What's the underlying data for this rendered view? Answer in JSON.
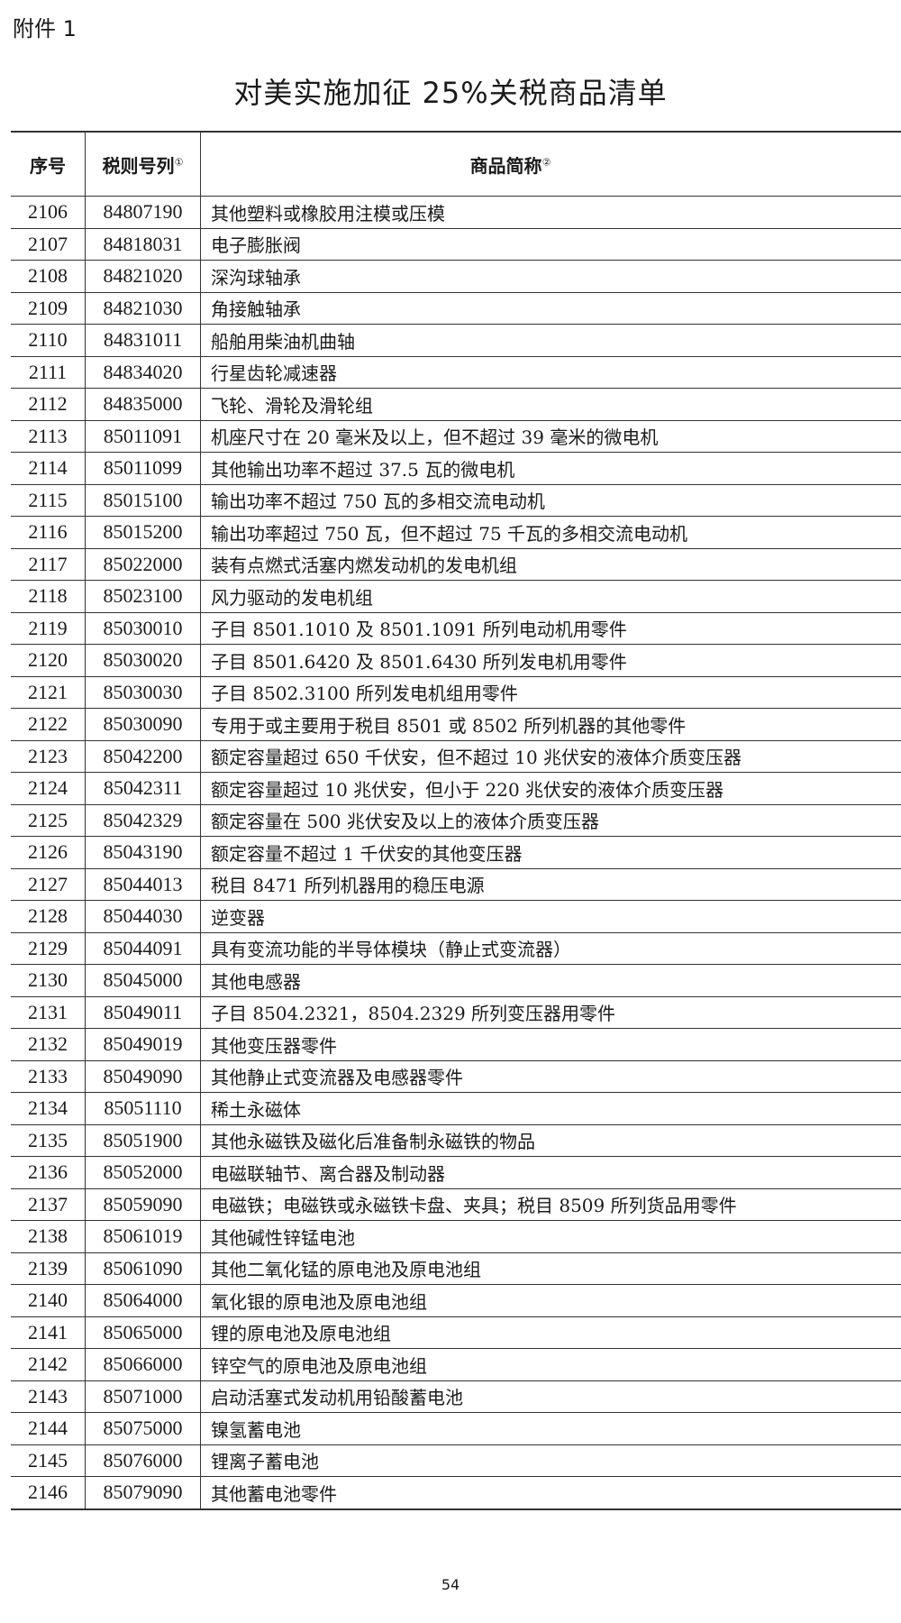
{
  "attachment_label": "附件 1",
  "title": "对美实施加征 25%关税商品清单",
  "table": {
    "headers": [
      {
        "label": "序号",
        "note": ""
      },
      {
        "label": "税则号列",
        "note": "①"
      },
      {
        "label": "商品简称",
        "note": "②"
      }
    ],
    "rows": [
      [
        "2106",
        "84807190",
        "其他塑料或橡胶用注模或压模"
      ],
      [
        "2107",
        "84818031",
        "电子膨胀阀"
      ],
      [
        "2108",
        "84821020",
        "深沟球轴承"
      ],
      [
        "2109",
        "84821030",
        "角接触轴承"
      ],
      [
        "2110",
        "84831011",
        "船舶用柴油机曲轴"
      ],
      [
        "2111",
        "84834020",
        "行星齿轮减速器"
      ],
      [
        "2112",
        "84835000",
        "飞轮、滑轮及滑轮组"
      ],
      [
        "2113",
        "85011091",
        "机座尺寸在 20 毫米及以上，但不超过 39 毫米的微电机"
      ],
      [
        "2114",
        "85011099",
        "其他输出功率不超过 37.5 瓦的微电机"
      ],
      [
        "2115",
        "85015100",
        "输出功率不超过 750 瓦的多相交流电动机"
      ],
      [
        "2116",
        "85015200",
        "输出功率超过 750 瓦，但不超过 75 千瓦的多相交流电动机"
      ],
      [
        "2117",
        "85022000",
        "装有点燃式活塞内燃发动机的发电机组"
      ],
      [
        "2118",
        "85023100",
        "风力驱动的发电机组"
      ],
      [
        "2119",
        "85030010",
        "子目 8501.1010 及 8501.1091 所列电动机用零件"
      ],
      [
        "2120",
        "85030020",
        "子目 8501.6420 及 8501.6430 所列发电机用零件"
      ],
      [
        "2121",
        "85030030",
        "子目 8502.3100 所列发电机组用零件"
      ],
      [
        "2122",
        "85030090",
        "专用于或主要用于税目 8501 或 8502 所列机器的其他零件"
      ],
      [
        "2123",
        "85042200",
        "额定容量超过 650 千伏安，但不超过 10 兆伏安的液体介质变压器"
      ],
      [
        "2124",
        "85042311",
        "额定容量超过 10 兆伏安，但小于 220 兆伏安的液体介质变压器"
      ],
      [
        "2125",
        "85042329",
        "额定容量在 500 兆伏安及以上的液体介质变压器"
      ],
      [
        "2126",
        "85043190",
        "额定容量不超过 1 千伏安的其他变压器"
      ],
      [
        "2127",
        "85044013",
        "税目 8471 所列机器用的稳压电源"
      ],
      [
        "2128",
        "85044030",
        "逆变器"
      ],
      [
        "2129",
        "85044091",
        "具有变流功能的半导体模块（静止式变流器）"
      ],
      [
        "2130",
        "85045000",
        "其他电感器"
      ],
      [
        "2131",
        "85049011",
        "子目 8504.2321，8504.2329 所列变压器用零件"
      ],
      [
        "2132",
        "85049019",
        "其他变压器零件"
      ],
      [
        "2133",
        "85049090",
        "其他静止式变流器及电感器零件"
      ],
      [
        "2134",
        "85051110",
        "稀土永磁体"
      ],
      [
        "2135",
        "85051900",
        "其他永磁铁及磁化后准备制永磁铁的物品"
      ],
      [
        "2136",
        "85052000",
        "电磁联轴节、离合器及制动器"
      ],
      [
        "2137",
        "85059090",
        "电磁铁；电磁铁或永磁铁卡盘、夹具；税目 8509 所列货品用零件"
      ],
      [
        "2138",
        "85061019",
        "其他碱性锌锰电池"
      ],
      [
        "2139",
        "85061090",
        "其他二氧化锰的原电池及原电池组"
      ],
      [
        "2140",
        "85064000",
        "氧化银的原电池及原电池组"
      ],
      [
        "2141",
        "85065000",
        "锂的原电池及原电池组"
      ],
      [
        "2142",
        "85066000",
        "锌空气的原电池及原电池组"
      ],
      [
        "2143",
        "85071000",
        "启动活塞式发动机用铅酸蓄电池"
      ],
      [
        "2144",
        "85075000",
        "镍氢蓄电池"
      ],
      [
        "2145",
        "85076000",
        "锂离子蓄电池"
      ],
      [
        "2146",
        "85079090",
        "其他蓄电池零件"
      ]
    ]
  },
  "page_number": "54"
}
